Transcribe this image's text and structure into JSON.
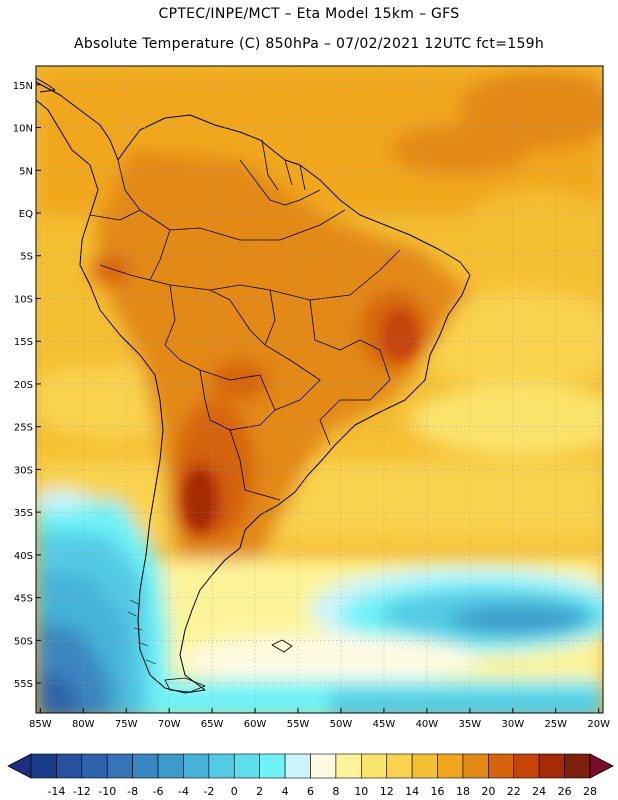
{
  "header": {
    "line1": "CPTEC/INPE/MCT –  Eta Model 15km – GFS",
    "line2": "Absolute Temperature (C) 850hPa – 07/02/2021 12UTC fct=159h"
  },
  "map": {
    "lat_labels": [
      "15N",
      "10N",
      "5N",
      "EQ",
      "5S",
      "10S",
      "15S",
      "20S",
      "25S",
      "30S",
      "35S",
      "40S",
      "45S",
      "50S",
      "55S"
    ],
    "lon_labels": [
      "85W",
      "80W",
      "75W",
      "70W",
      "65W",
      "60W",
      "55W",
      "50W",
      "45W",
      "40W",
      "35W",
      "30W",
      "25W",
      "20W"
    ],
    "lat_values": [
      15,
      10,
      5,
      0,
      -5,
      -10,
      -15,
      -20,
      -25,
      -30,
      -35,
      -40,
      -45,
      -50,
      -55
    ],
    "lon_values": [
      -85,
      -80,
      -75,
      -70,
      -65,
      -60,
      -55,
      -50,
      -45,
      -40,
      -35,
      -30,
      -25,
      -20
    ],
    "extent": {
      "lon_min": -85.5,
      "lon_max": -19.5,
      "lat_min": -58.5,
      "lat_max": 17.2
    }
  },
  "colorbar": {
    "labels": [
      "-14",
      "-12",
      "-10",
      "-8",
      "-6",
      "-4",
      "-2",
      "0",
      "2",
      "4",
      "6",
      "8",
      "10",
      "12",
      "14",
      "16",
      "18",
      "20",
      "22",
      "24",
      "26",
      "28"
    ],
    "colors": [
      "#1a3c8c",
      "#25519e",
      "#2e63ab",
      "#3574b6",
      "#3a86c0",
      "#3d9bcb",
      "#45b3d9",
      "#53cbe5",
      "#5fdfee",
      "#6ff3f7",
      "#cbf5fb",
      "#fffbe2",
      "#fdf49a",
      "#fbe46c",
      "#f9d34e",
      "#f5bf32",
      "#f1a71d",
      "#e38913",
      "#d6640b",
      "#c54508",
      "#a42b06",
      "#7d1f0b"
    ],
    "left_arrow_color": "#1b2f83",
    "right_arrow_color": "#7a0d2e"
  },
  "fields": {
    "ocean_north": "#f1a71d",
    "land_warm": "#e38913",
    "hot_core": "#d6640b",
    "cold_pacific": "#3a86c0",
    "cold_atlantic": "#53cbe5"
  }
}
